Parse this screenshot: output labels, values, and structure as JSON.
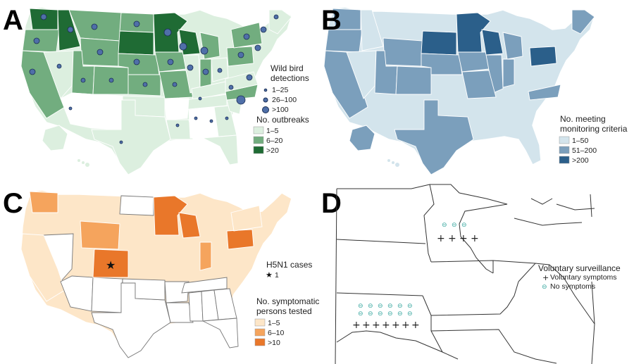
{
  "panelA": {
    "letter": "A",
    "wild_bird_title_1": "Wild bird",
    "wild_bird_title_2": "detections",
    "wild_bird_levels": [
      "1–25",
      "26–100",
      ">100"
    ],
    "outbreaks_title": "No. outbreaks",
    "outbreaks_levels": [
      "1–5",
      "6–20",
      ">20"
    ],
    "colors": {
      "low": "#dcefdf",
      "mid": "#72ad7f",
      "high": "#1f6b34",
      "none": "#ffffff",
      "dot": "#4f6fa8"
    }
  },
  "panelB": {
    "letter": "B",
    "title_1": "No. meeting",
    "title_2": "monitoring criteria",
    "levels": [
      "1–50",
      "51–200",
      ">200"
    ],
    "colors": {
      "low": "#d3e4ec",
      "mid": "#7b9fbc",
      "high": "#2b5f8a",
      "none": "#ffffff"
    }
  },
  "panelC": {
    "letter": "C",
    "cases_title": "H5N1 cases",
    "cases_value": "1",
    "tested_title_1": "No. symptomatic",
    "tested_title_2": "persons tested",
    "levels": [
      "1–5",
      "6–10",
      ">10"
    ],
    "colors": {
      "low": "#fde6c8",
      "mid": "#f5a45d",
      "high": "#e9772a",
      "none": "#ffffff"
    }
  },
  "panelD": {
    "letter": "D",
    "legend_title": "Voluntary surveillance",
    "legend_items": [
      "Voluntary symptoms",
      "No symptoms"
    ],
    "colors": {
      "symptom": "#222222",
      "no_symptom": "#3aa8a0"
    }
  }
}
